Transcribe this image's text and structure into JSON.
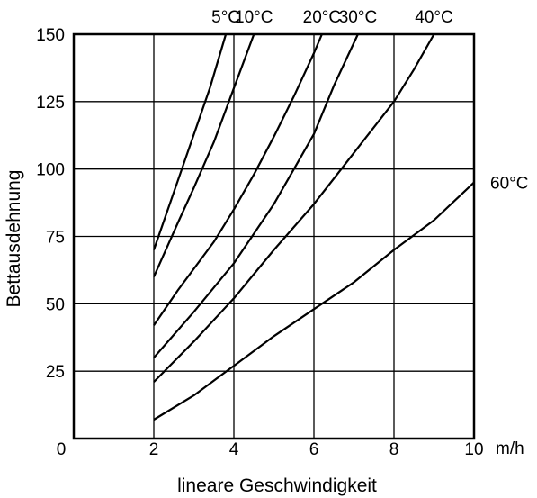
{
  "chart_data": {
    "type": "line",
    "title": "",
    "xlabel": "lineare Geschwindigkeit",
    "ylabel": "Bettausdehnung",
    "x_unit": "m/h",
    "xlim": [
      0,
      10
    ],
    "ylim": [
      0,
      150
    ],
    "x_ticks": [
      "0",
      "2",
      "4",
      "6",
      "8",
      "10"
    ],
    "y_ticks": [
      "25",
      "50",
      "75",
      "100",
      "125",
      "150"
    ],
    "x_grid_values": [
      2,
      4,
      6,
      8
    ],
    "y_grid_values": [
      25,
      50,
      75,
      100,
      125
    ],
    "grid": true,
    "series": [
      {
        "name": "5°C",
        "x": [
          2.0,
          2.7,
          3.4,
          3.8
        ],
        "y": [
          70,
          100,
          130,
          150
        ]
      },
      {
        "name": "10°C",
        "x": [
          2.0,
          2.6,
          3.0,
          3.5,
          4.0,
          4.5
        ],
        "y": [
          60,
          80,
          93,
          110,
          130,
          150
        ]
      },
      {
        "name": "20°C",
        "x": [
          2.0,
          2.6,
          3.5,
          4.0,
          4.5,
          5.0,
          5.5,
          6.0,
          6.2
        ],
        "y": [
          42,
          55,
          73,
          85,
          98,
          112,
          127,
          143,
          150
        ]
      },
      {
        "name": "30°C",
        "x": [
          2.0,
          3.0,
          4.0,
          5.0,
          5.5,
          6.0,
          6.5,
          7.1
        ],
        "y": [
          30,
          47,
          65,
          87,
          100,
          113,
          131,
          150
        ]
      },
      {
        "name": "40°C",
        "x": [
          2.0,
          3.0,
          4.0,
          5.0,
          6.0,
          7.0,
          8.0,
          8.5,
          9.0
        ],
        "y": [
          21,
          36,
          52,
          70,
          87,
          106,
          125,
          137,
          150
        ]
      },
      {
        "name": "60°C",
        "x": [
          2.0,
          3.0,
          4.0,
          5.0,
          6.0,
          7.0,
          8.0,
          9.0,
          10.0
        ],
        "y": [
          7,
          16,
          27,
          38,
          48,
          58,
          70,
          81,
          95
        ]
      }
    ]
  }
}
